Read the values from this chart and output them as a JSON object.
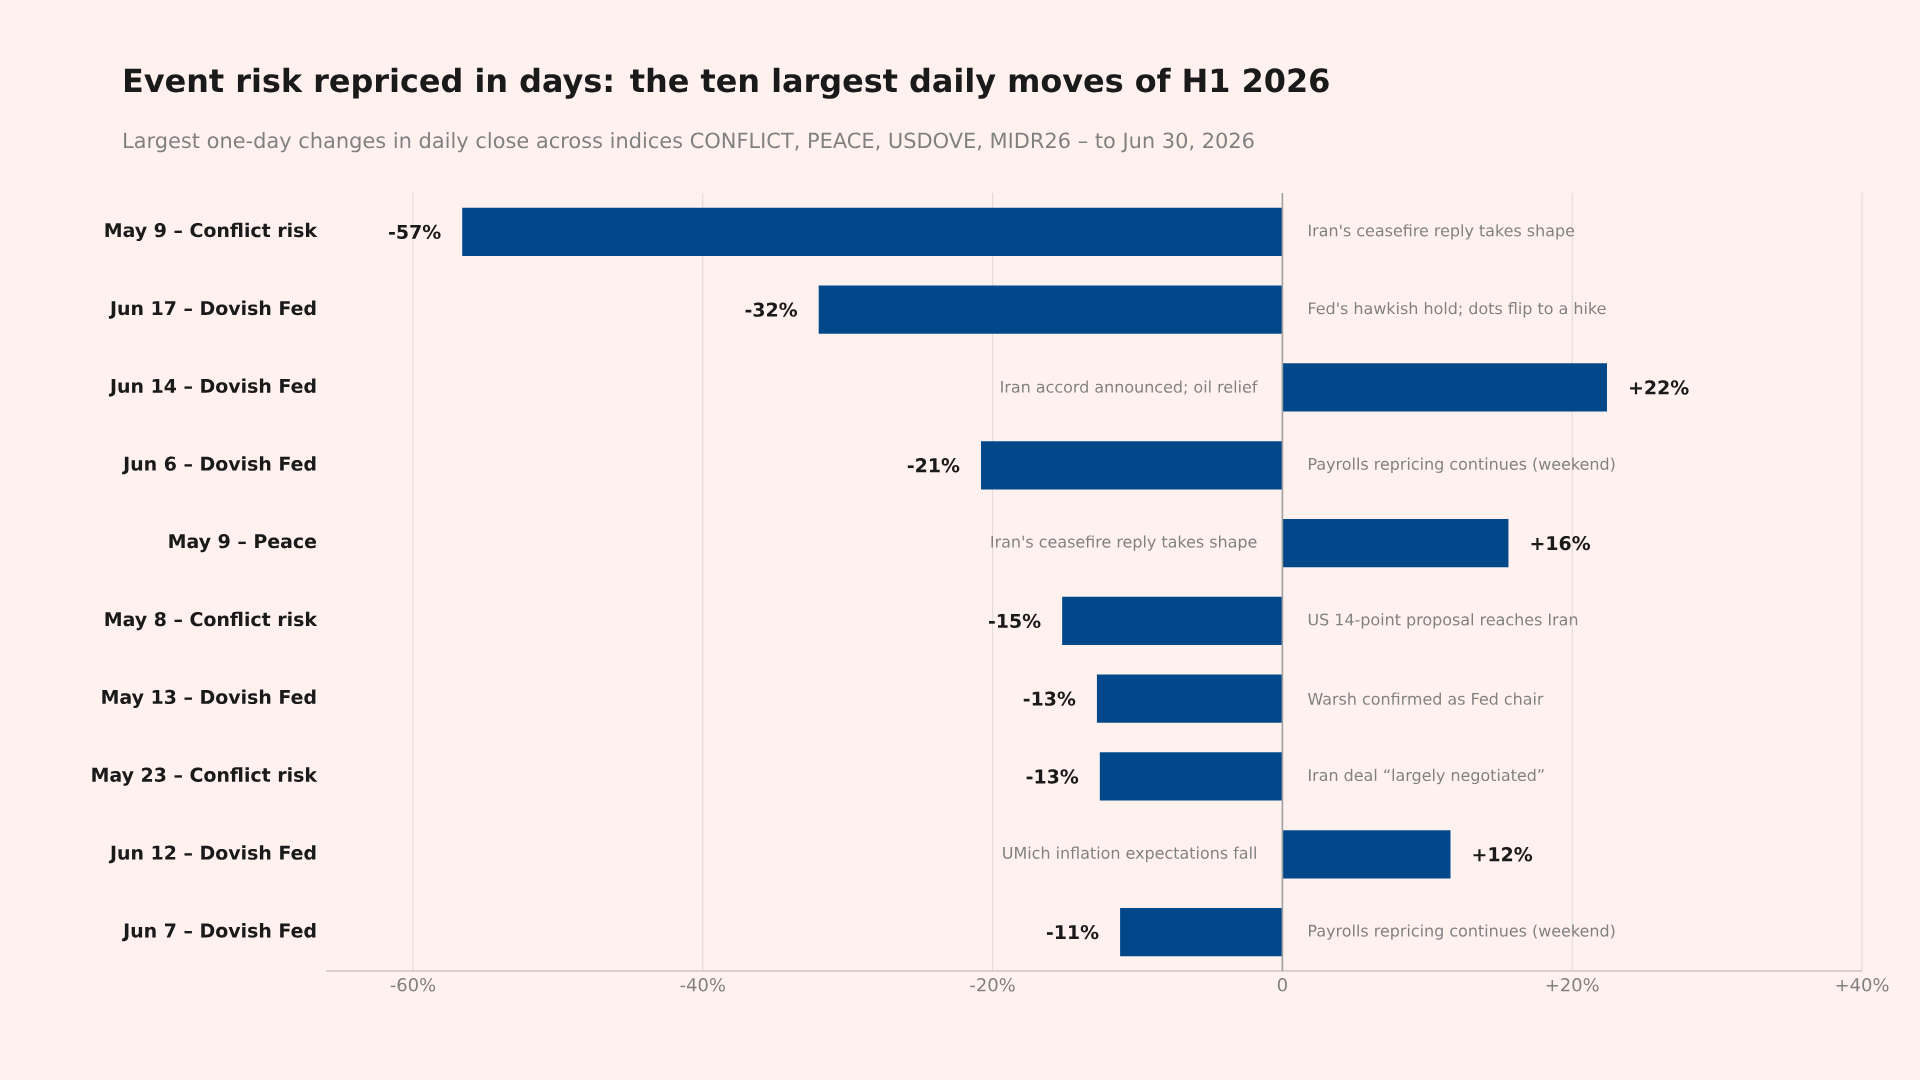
{
  "chart_data": {
    "type": "bar",
    "orientation": "horizontal",
    "title": "Event risk repriced in days: the ten largest daily moves of H1 2026",
    "subtitle": "Largest one-day changes in daily close across indices CONFLICT, PEACE, USDOVE, MIDR26 – to Jun 30, 2026",
    "categories": [
      "May 9 – Conflict risk",
      "Jun 17 – Dovish Fed",
      "Jun 14 – Dovish Fed",
      "Jun 6 – Dovish Fed",
      "May 9 – Peace",
      "May 8 – Conflict risk",
      "May 13 – Dovish Fed",
      "May 23 – Conflict risk",
      "Jun 12 – Dovish Fed",
      "Jun 7 – Dovish Fed"
    ],
    "values": [
      -56.6,
      -32.0,
      22.4,
      -20.8,
      15.6,
      -15.2,
      -12.8,
      -12.6,
      11.6,
      -11.2
    ],
    "value_labels": [
      "-57%",
      "-32%",
      "+22%",
      "-21%",
      "+16%",
      "-15%",
      "-13%",
      "-13%",
      "+12%",
      "-11%"
    ],
    "color": "#00488a",
    "xlim": [
      -66,
      40
    ],
    "xticks": [
      {
        "value": -60,
        "label": "-60%"
      },
      {
        "value": -40,
        "label": "-40%"
      },
      {
        "value": -20,
        "label": "-20%"
      },
      0,
      {
        "value": 20,
        "label": "+20%"
      },
      {
        "value": 40,
        "label": "+40%"
      }
    ],
    "grid": "x",
    "annotations": [
      "Iran's ceasefire reply takes shape",
      "Fed's hawkish hold; dots flip to a hike",
      "Iran accord announced; oil relief",
      "Payrolls repricing continues (weekend)",
      "Iran's ceasefire reply takes shape",
      "US 14-point proposal reaches Iran",
      "Warsh confirmed as Fed chair",
      "Iran deal “largely negotiated”",
      "UMich inflation expectations fall",
      "Payrolls repricing continues (weekend)"
    ]
  }
}
